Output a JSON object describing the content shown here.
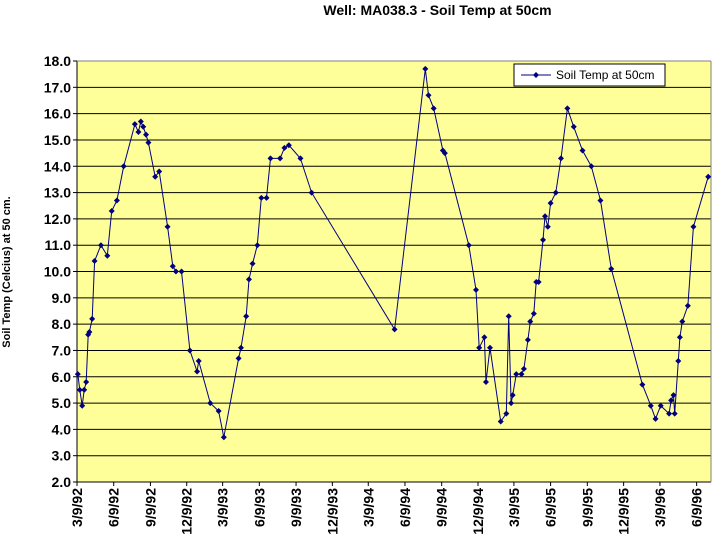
{
  "chart_data": {
    "type": "line",
    "title": "Well: MA038.3 - Soil Temp at 50cm",
    "xlabel": "",
    "ylabel": "Soil Temp (Celcius) at 50 cm.",
    "ylim": [
      2.0,
      18.0
    ],
    "yticks": [
      "2.0",
      "3.0",
      "4.0",
      "5.0",
      "6.0",
      "7.0",
      "8.0",
      "9.0",
      "10.0",
      "11.0",
      "12.0",
      "13.0",
      "14.0",
      "15.0",
      "16.0",
      "17.0",
      "18.0"
    ],
    "xlim": [
      "1992-03-09",
      "1996-07-15"
    ],
    "xticks": [
      {
        "date": "1992-03-09",
        "label": "3/9/92"
      },
      {
        "date": "1992-06-09",
        "label": "6/9/92"
      },
      {
        "date": "1992-09-09",
        "label": "9/9/92"
      },
      {
        "date": "1992-12-09",
        "label": "12/9/92"
      },
      {
        "date": "1993-03-09",
        "label": "3/9/93"
      },
      {
        "date": "1993-06-09",
        "label": "6/9/93"
      },
      {
        "date": "1993-09-09",
        "label": "9/9/93"
      },
      {
        "date": "1993-12-09",
        "label": "12/9/93"
      },
      {
        "date": "1994-03-09",
        "label": "3/9/94"
      },
      {
        "date": "1994-06-09",
        "label": "6/9/94"
      },
      {
        "date": "1994-09-09",
        "label": "9/9/94"
      },
      {
        "date": "1994-12-09",
        "label": "12/9/94"
      },
      {
        "date": "1995-03-09",
        "label": "3/9/95"
      },
      {
        "date": "1995-06-09",
        "label": "6/9/95"
      },
      {
        "date": "1995-09-09",
        "label": "9/9/95"
      },
      {
        "date": "1995-12-09",
        "label": "12/9/95"
      },
      {
        "date": "1996-03-09",
        "label": "3/9/96"
      },
      {
        "date": "1996-06-09",
        "label": "6/9/96"
      }
    ],
    "grid": "horizontal",
    "legend_position": "top-right",
    "colors": {
      "plot_bg": "#FFFF99",
      "series": "#000080",
      "grid": "#000000"
    },
    "series": [
      {
        "name": "Soil Temp at 50cm",
        "points": [
          [
            "1992-03-11",
            6.1
          ],
          [
            "1992-03-16",
            5.5
          ],
          [
            "1992-03-22",
            4.9
          ],
          [
            "1992-03-27",
            5.5
          ],
          [
            "1992-04-01",
            5.8
          ],
          [
            "1992-04-06",
            7.6
          ],
          [
            "1992-04-09",
            7.7
          ],
          [
            "1992-04-16",
            8.2
          ],
          [
            "1992-04-22",
            10.4
          ],
          [
            "1992-05-08",
            11.0
          ],
          [
            "1992-05-24",
            10.6
          ],
          [
            "1992-06-04",
            12.3
          ],
          [
            "1992-06-17",
            12.7
          ],
          [
            "1992-07-04",
            14.0
          ],
          [
            "1992-08-01",
            15.6
          ],
          [
            "1992-08-10",
            15.3
          ],
          [
            "1992-08-16",
            15.7
          ],
          [
            "1992-08-22",
            15.5
          ],
          [
            "1992-08-29",
            15.2
          ],
          [
            "1992-09-04",
            14.9
          ],
          [
            "1992-09-21",
            13.6
          ],
          [
            "1992-10-01",
            13.8
          ],
          [
            "1992-10-22",
            11.7
          ],
          [
            "1992-11-04",
            10.2
          ],
          [
            "1992-11-12",
            10.0
          ],
          [
            "1992-11-26",
            10.0
          ],
          [
            "1992-12-17",
            7.0
          ],
          [
            "1993-01-04",
            6.2
          ],
          [
            "1993-01-08",
            6.6
          ],
          [
            "1993-02-06",
            5.0
          ],
          [
            "1993-02-27",
            4.7
          ],
          [
            "1993-03-12",
            3.7
          ],
          [
            "1993-04-18",
            6.7
          ],
          [
            "1993-04-24",
            7.1
          ],
          [
            "1993-05-07",
            8.3
          ],
          [
            "1993-05-14",
            9.7
          ],
          [
            "1993-05-23",
            10.3
          ],
          [
            "1993-06-04",
            11.0
          ],
          [
            "1993-06-14",
            12.8
          ],
          [
            "1993-06-27",
            12.8
          ],
          [
            "1993-07-07",
            14.3
          ],
          [
            "1993-07-31",
            14.3
          ],
          [
            "1993-08-11",
            14.7
          ],
          [
            "1993-08-22",
            14.8
          ],
          [
            "1993-09-20",
            14.3
          ],
          [
            "1993-10-18",
            13.0
          ],
          [
            "1994-05-14",
            7.8
          ],
          [
            "1994-07-30",
            17.7
          ],
          [
            "1994-08-07",
            16.7
          ],
          [
            "1994-08-20",
            16.2
          ],
          [
            "1994-09-12",
            14.6
          ],
          [
            "1994-09-17",
            14.5
          ],
          [
            "1994-11-16",
            11.0
          ],
          [
            "1994-12-04",
            9.3
          ],
          [
            "1994-12-12",
            7.1
          ],
          [
            "1994-12-25",
            7.5
          ],
          [
            "1994-12-29",
            5.8
          ],
          [
            "1995-01-08",
            7.1
          ],
          [
            "1995-02-04",
            4.3
          ],
          [
            "1995-02-18",
            4.6
          ],
          [
            "1995-02-24",
            8.3
          ],
          [
            "1995-03-02",
            5.0
          ],
          [
            "1995-03-06",
            5.3
          ],
          [
            "1995-03-15",
            6.1
          ],
          [
            "1995-03-28",
            6.1
          ],
          [
            "1995-04-03",
            6.3
          ],
          [
            "1995-04-13",
            7.4
          ],
          [
            "1995-04-19",
            8.1
          ],
          [
            "1995-04-28",
            8.4
          ],
          [
            "1995-05-04",
            9.6
          ],
          [
            "1995-05-10",
            9.6
          ],
          [
            "1995-05-21",
            11.2
          ],
          [
            "1995-05-26",
            12.1
          ],
          [
            "1995-06-02",
            11.7
          ],
          [
            "1995-06-09",
            12.6
          ],
          [
            "1995-06-22",
            13.0
          ],
          [
            "1995-07-05",
            14.3
          ],
          [
            "1995-07-21",
            16.2
          ],
          [
            "1995-08-06",
            15.5
          ],
          [
            "1995-08-28",
            14.6
          ],
          [
            "1995-09-19",
            14.0
          ],
          [
            "1995-10-12",
            12.7
          ],
          [
            "1995-11-08",
            10.1
          ],
          [
            "1996-01-25",
            5.7
          ],
          [
            "1996-02-15",
            4.9
          ],
          [
            "1996-02-27",
            4.4
          ],
          [
            "1996-03-11",
            4.9
          ],
          [
            "1996-04-01",
            4.6
          ],
          [
            "1996-04-06",
            5.1
          ],
          [
            "1996-04-12",
            5.3
          ],
          [
            "1996-04-15",
            4.6
          ],
          [
            "1996-04-24",
            6.6
          ],
          [
            "1996-04-28",
            7.5
          ],
          [
            "1996-05-04",
            8.1
          ],
          [
            "1996-05-18",
            8.7
          ],
          [
            "1996-06-01",
            11.7
          ],
          [
            "1996-07-08",
            13.6
          ]
        ]
      }
    ]
  }
}
